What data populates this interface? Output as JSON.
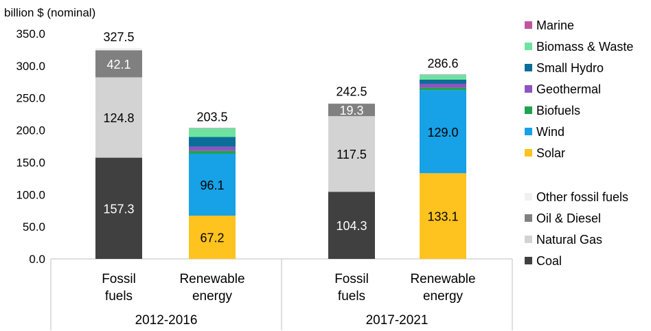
{
  "chart_data": {
    "type": "bar",
    "stacked": true,
    "ylabel": "billion $ (nominal)",
    "ylim": [
      0,
      350
    ],
    "ytick_step": 50,
    "ytick_labels": [
      "0.0",
      "50.0",
      "100.0",
      "150.0",
      "200.0",
      "250.0",
      "300.0",
      "350.0"
    ],
    "groups": [
      {
        "label": "2012-2016",
        "bars": [
          {
            "label": "Fossil fuels",
            "total_label": "327.5",
            "segments": [
              {
                "series": "Coal",
                "value": 157.3,
                "label": "157.3"
              },
              {
                "series": "Natural Gas",
                "value": 124.8,
                "label": "124.8"
              },
              {
                "series": "Oil & Diesel",
                "value": 42.1,
                "label": "42.1"
              },
              {
                "series": "Other fossil fuels",
                "value": 3.3,
                "label": ""
              }
            ]
          },
          {
            "label": "Renewable energy",
            "total_label": "203.5",
            "segments": [
              {
                "series": "Solar",
                "value": 67.2,
                "label": "67.2"
              },
              {
                "series": "Wind",
                "value": 96.1,
                "label": "96.1"
              },
              {
                "series": "Biofuels",
                "value": 4.5,
                "label": ""
              },
              {
                "series": "Geothermal",
                "value": 6.5,
                "label": ""
              },
              {
                "series": "Small Hydro",
                "value": 15.2,
                "label": ""
              },
              {
                "series": "Biomass & Waste",
                "value": 13.5,
                "label": ""
              },
              {
                "series": "Marine",
                "value": 0.5,
                "label": ""
              }
            ]
          }
        ]
      },
      {
        "label": "2017-2021",
        "bars": [
          {
            "label": "Fossil fuels",
            "total_label": "242.5",
            "segments": [
              {
                "series": "Coal",
                "value": 104.3,
                "label": "104.3"
              },
              {
                "series": "Natural Gas",
                "value": 117.5,
                "label": "117.5"
              },
              {
                "series": "Oil & Diesel",
                "value": 19.3,
                "label": "19.3"
              },
              {
                "series": "Other fossil fuels",
                "value": 1.4,
                "label": ""
              }
            ]
          },
          {
            "label": "Renewable energy",
            "total_label": "286.6",
            "segments": [
              {
                "series": "Solar",
                "value": 133.1,
                "label": "133.1"
              },
              {
                "series": "Wind",
                "value": 129.0,
                "label": "129.0"
              },
              {
                "series": "Biofuels",
                "value": 4.0,
                "label": ""
              },
              {
                "series": "Geothermal",
                "value": 6.0,
                "label": ""
              },
              {
                "series": "Small Hydro",
                "value": 6.5,
                "label": ""
              },
              {
                "series": "Biomass & Waste",
                "value": 7.5,
                "label": ""
              },
              {
                "series": "Marine",
                "value": 0.5,
                "label": ""
              }
            ]
          }
        ]
      }
    ],
    "legend_top": [
      {
        "name": "Marine",
        "color": "#c0569e"
      },
      {
        "name": "Biomass & Waste",
        "color": "#6ee3a0"
      },
      {
        "name": "Small Hydro",
        "color": "#0c6e98"
      },
      {
        "name": "Geothermal",
        "color": "#8f53c2"
      },
      {
        "name": "Biofuels",
        "color": "#1fa34f"
      },
      {
        "name": "Wind",
        "color": "#17a1e6"
      },
      {
        "name": "Solar",
        "color": "#ffc320"
      }
    ],
    "legend_bottom": [
      {
        "name": "Other fossil fuels",
        "color": "#f0f0f0"
      },
      {
        "name": "Oil & Diesel",
        "color": "#808080"
      },
      {
        "name": "Natural Gas",
        "color": "#d3d3d3"
      },
      {
        "name": "Coal",
        "color": "#404040"
      }
    ],
    "label_colors": {
      "Coal": "#ffffff",
      "Oil & Diesel": "#ffffff",
      "Natural Gas": "#000000",
      "Wind": "#000000",
      "Solar": "#000000"
    },
    "grid": false,
    "legend_position": "right"
  }
}
